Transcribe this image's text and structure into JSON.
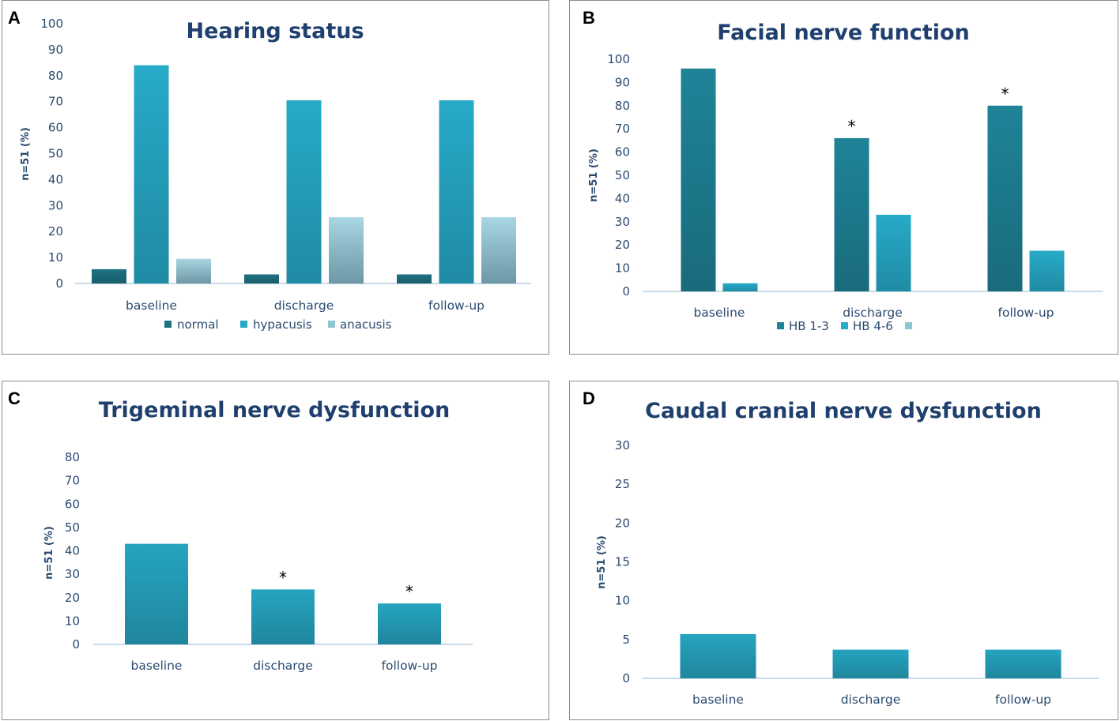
{
  "panels": [
    {
      "letter": "A"
    },
    {
      "letter": "B"
    },
    {
      "letter": "C"
    },
    {
      "letter": "D"
    }
  ],
  "colors": {
    "normal": "#1e7283",
    "hypacusis": "#27aac8",
    "anacusis": "#8fc6d4",
    "hb13": "#1f8397",
    "hb46": "#27aac8",
    "single": "#26a4c0",
    "axis": "#b9cfe0",
    "text": "#2a4a70",
    "title": "#1f3f6e"
  },
  "chart_data": [
    {
      "type": "bar",
      "title": "Hearing status",
      "ylabel": "n=51 (%)",
      "xlabel": "",
      "ylim": [
        0,
        100
      ],
      "yticks": [
        0,
        10,
        20,
        30,
        40,
        50,
        60,
        70,
        80,
        90,
        100
      ],
      "categories": [
        "baseline",
        "discharge",
        "follow-up"
      ],
      "series": [
        {
          "name": "normal",
          "values": [
            5.5,
            3.5,
            3.5
          ]
        },
        {
          "name": "hypacusis",
          "values": [
            84,
            70.5,
            70.5
          ]
        },
        {
          "name": "anacusis",
          "values": [
            9.5,
            25.5,
            25.5
          ]
        }
      ],
      "legend": [
        "normal",
        "hypacusis",
        "anacusis"
      ],
      "legend_position": "bottom",
      "grid": false
    },
    {
      "type": "bar",
      "title": "Facial nerve function",
      "ylabel": "n=51 (%)",
      "xlabel": "",
      "ylim": [
        0,
        100
      ],
      "yticks": [
        0,
        10,
        20,
        30,
        40,
        50,
        60,
        70,
        80,
        90,
        100
      ],
      "categories": [
        "baseline",
        "discharge",
        "follow-up"
      ],
      "series": [
        {
          "name": "HB 1-3",
          "values": [
            96,
            66,
            80
          ]
        },
        {
          "name": "HB 4-6",
          "values": [
            3.5,
            33,
            17.5
          ]
        }
      ],
      "legend": [
        "HB 1-3",
        "HB 4-6",
        ""
      ],
      "legend_position": "bottom",
      "annotations": [
        {
          "text": "*",
          "category": "discharge",
          "series": "HB 1-3"
        },
        {
          "text": "*",
          "category": "follow-up",
          "series": "HB 1-3"
        }
      ],
      "grid": false
    },
    {
      "type": "bar",
      "title": "Trigeminal nerve dysfunction",
      "ylabel": "n=51 (%)",
      "xlabel": "",
      "ylim": [
        0,
        80
      ],
      "yticks": [
        0,
        10,
        20,
        30,
        40,
        50,
        60,
        70,
        80
      ],
      "categories": [
        "baseline",
        "discharge",
        "follow-up"
      ],
      "series": [
        {
          "name": "dysfunction",
          "values": [
            43,
            23.5,
            17.5
          ]
        }
      ],
      "annotations": [
        {
          "text": "*",
          "category": "discharge",
          "series": "dysfunction"
        },
        {
          "text": "*",
          "category": "follow-up",
          "series": "dysfunction"
        }
      ],
      "grid": false
    },
    {
      "type": "bar",
      "title": "Caudal cranial nerve dysfunction",
      "ylabel": "n=51 (%)",
      "xlabel": "",
      "ylim": [
        0,
        30
      ],
      "yticks": [
        0,
        5,
        10,
        15,
        20,
        25,
        30
      ],
      "categories": [
        "baseline",
        "discharge",
        "follow-up"
      ],
      "series": [
        {
          "name": "dysfunction",
          "values": [
            5.7,
            3.7,
            3.7
          ]
        }
      ],
      "grid": false
    }
  ]
}
